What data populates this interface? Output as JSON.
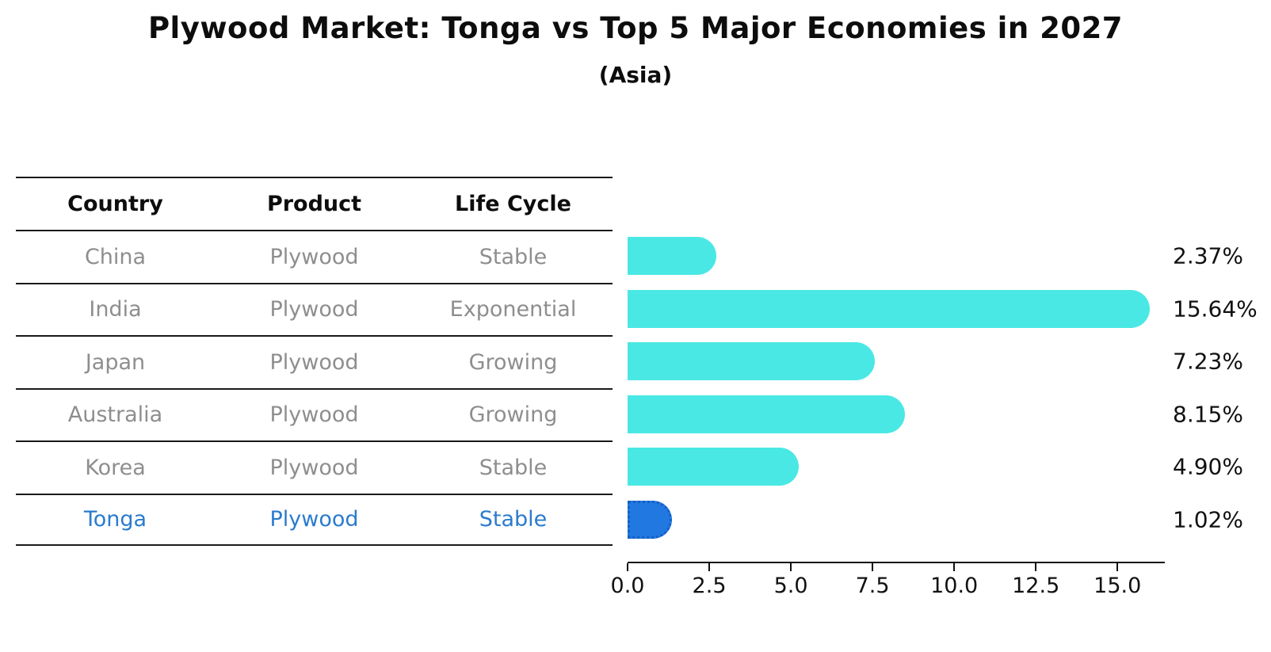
{
  "title": "Plywood Market: Tonga vs Top 5 Major Economies in 2027",
  "subtitle": "(Asia)",
  "table": {
    "headers": [
      "Country",
      "Product",
      "Life Cycle"
    ],
    "rows": [
      {
        "country": "China",
        "product": "Plywood",
        "life_cycle": "Stable"
      },
      {
        "country": "India",
        "product": "Plywood",
        "life_cycle": "Exponential"
      },
      {
        "country": "Japan",
        "product": "Plywood",
        "life_cycle": "Growing"
      },
      {
        "country": "Australia",
        "product": "Plywood",
        "life_cycle": "Growing"
      },
      {
        "country": "Korea",
        "product": "Plywood",
        "life_cycle": "Stable"
      },
      {
        "country": "Tonga",
        "product": "Plywood",
        "life_cycle": "Stable"
      }
    ],
    "highlight_row_index": 5
  },
  "chart_data": {
    "type": "bar",
    "orientation": "horizontal",
    "categories": [
      "China",
      "India",
      "Japan",
      "Australia",
      "Korea",
      "Tonga"
    ],
    "values": [
      2.37,
      15.64,
      7.23,
      8.15,
      4.9,
      1.02
    ],
    "value_labels": [
      "2.37%",
      "15.64%",
      "7.23%",
      "8.15%",
      "4.90%",
      "1.02%"
    ],
    "title": "Plywood Market: Tonga vs Top 5 Major Economies in 2027",
    "subtitle": "(Asia)",
    "xlabel": "",
    "ylabel": "",
    "xlim": [
      0,
      16.45
    ],
    "xticks": [
      "0.0",
      "2.5",
      "5.0",
      "7.5",
      "10.0",
      "12.5",
      "15.0"
    ],
    "xtick_values": [
      0,
      2.5,
      5,
      7.5,
      10,
      12.5,
      15
    ],
    "grid": false,
    "legend": false,
    "highlight_index": 5
  },
  "colors": {
    "bar_color": "#4AE8E4",
    "highlight_bar_color": "#2178E0",
    "highlight_bar_border": "#155FC4",
    "row_text": "#8e8e8e",
    "highlight_text": "#2b7bce",
    "line_color": "#1a1a1a",
    "label_color": "#111111"
  }
}
